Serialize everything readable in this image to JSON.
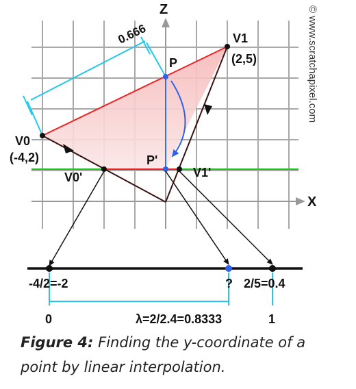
{
  "watermark": "© www.scratchapixel.com",
  "axes": {
    "z": "Z",
    "x": "X"
  },
  "points": {
    "v1": "V1",
    "v1_coord": "(2,5)",
    "v0": "V0",
    "v0_coord": "(-4,2)",
    "p": "P",
    "p_proj": "P'",
    "v0_proj": "V0'",
    "v1_proj": "V1'"
  },
  "distance_label": "0.666",
  "number_line": {
    "left_value": "-4/2=-2",
    "unknown": "?",
    "right_value": "2/5=0.4",
    "zero": "0",
    "one": "1",
    "lambda": "λ=2/2.4=0.8333"
  },
  "caption": {
    "label": "Figure 4:",
    "text": "Finding the y-coordinate of a point by linear interpolation."
  },
  "colors": {
    "grid": "#a8a8a8",
    "triangle_edge": "#ee2222",
    "triangle_fill": "#f6c2c2",
    "green": "#22c322",
    "cyan": "#22c8ec",
    "blue": "#3a6ee8",
    "dark": "#3a1010"
  }
}
